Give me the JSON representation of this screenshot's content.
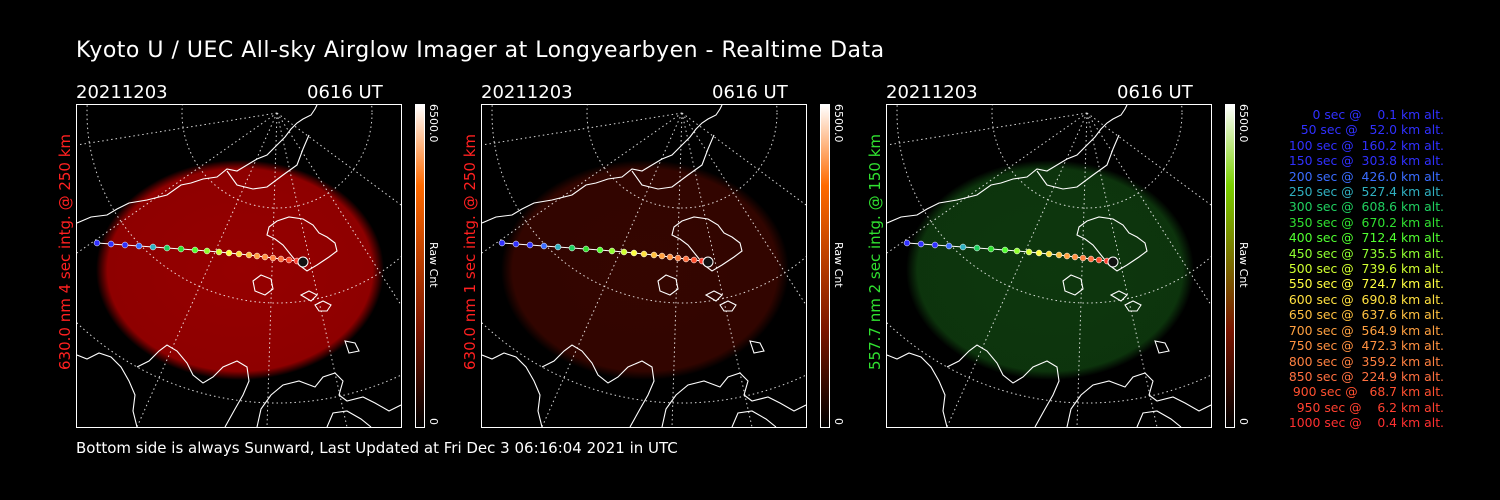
{
  "title": "Kyoto U / UEC All-sky Airglow Imager at Longyearbyen - Realtime Data",
  "footer": "Bottom side is always Sunward, Last Updated at Fri Dec  3 06:16:04 2021 in UTC",
  "panels": [
    {
      "date": "20211203",
      "time": "0616 UT",
      "ylabel": "630.0 nm 4 sec intg. @ 250 km",
      "ylabel_color": "#ff2020",
      "glow_color": "#b00000",
      "glow_opacity": 0.85,
      "cb_top": "6500.0",
      "cb_label": "Raw Cnt",
      "cb_bottom": "0",
      "cb_color": "#ff6a00"
    },
    {
      "date": "20211203",
      "time": "0616 UT",
      "ylabel": "630.0 nm 1 sec intg. @ 250 km",
      "ylabel_color": "#ff2020",
      "glow_color": "#3a0600",
      "glow_opacity": 0.9,
      "cb_top": "6500.0",
      "cb_label": "Raw Cnt",
      "cb_bottom": "0",
      "cb_color": "#ff6a00"
    },
    {
      "date": "20211203",
      "time": "0616 UT",
      "ylabel": "557.7 nm 2 sec intg. @ 150 km",
      "ylabel_color": "#30e030",
      "glow_color": "#0e3a0e",
      "glow_opacity": 0.95,
      "cb_top": "6500.0",
      "cb_label": "Raw Cnt",
      "cb_bottom": "0",
      "cb_color": "#7ad000"
    }
  ],
  "legend": [
    {
      "text": "   0 sec @    0.1 km alt.",
      "color": "#3030ff"
    },
    {
      "text": "  50 sec @   52.0 km alt.",
      "color": "#3030ff"
    },
    {
      "text": " 100 sec @  160.2 km alt.",
      "color": "#3030ff"
    },
    {
      "text": " 150 sec @  303.8 km alt.",
      "color": "#3030ff"
    },
    {
      "text": " 200 sec @  426.0 km alt.",
      "color": "#3a6cff"
    },
    {
      "text": " 250 sec @  527.4 km alt.",
      "color": "#30b0c0"
    },
    {
      "text": " 300 sec @  608.6 km alt.",
      "color": "#20d060"
    },
    {
      "text": " 350 sec @  670.2 km alt.",
      "color": "#30e030"
    },
    {
      "text": " 400 sec @  712.4 km alt.",
      "color": "#50ff30"
    },
    {
      "text": " 450 sec @  735.5 km alt.",
      "color": "#90ff30"
    },
    {
      "text": " 500 sec @  739.6 km alt.",
      "color": "#d0ff30"
    },
    {
      "text": " 550 sec @  724.7 km alt.",
      "color": "#ffff40"
    },
    {
      "text": " 600 sec @  690.8 km alt.",
      "color": "#ffe040"
    },
    {
      "text": " 650 sec @  637.6 km alt.",
      "color": "#ffc040"
    },
    {
      "text": " 700 sec @  564.9 km alt.",
      "color": "#ffa040"
    },
    {
      "text": " 750 sec @  472.3 km alt.",
      "color": "#ff9040"
    },
    {
      "text": " 800 sec @  359.2 km alt.",
      "color": "#ff8040"
    },
    {
      "text": " 850 sec @  224.9 km alt.",
      "color": "#ff7040"
    },
    {
      "text": " 900 sec @   68.7 km alt.",
      "color": "#ff5030"
    },
    {
      "text": " 950 sec @    6.2 km alt.",
      "color": "#ff4030"
    },
    {
      "text": "1000 sec @    0.4 km alt.",
      "color": "#ff3030"
    }
  ],
  "trajectory_colors": [
    "#3030ff",
    "#3030ff",
    "#3030ff",
    "#3a6cff",
    "#30b0c0",
    "#20d060",
    "#30e030",
    "#50ff30",
    "#90ff30",
    "#d0ff30",
    "#ffff40",
    "#ffe040",
    "#ffc040",
    "#ffa040",
    "#ff9040",
    "#ff8040",
    "#ff7040",
    "#ff5030",
    "#ff4030",
    "#ff3030"
  ]
}
